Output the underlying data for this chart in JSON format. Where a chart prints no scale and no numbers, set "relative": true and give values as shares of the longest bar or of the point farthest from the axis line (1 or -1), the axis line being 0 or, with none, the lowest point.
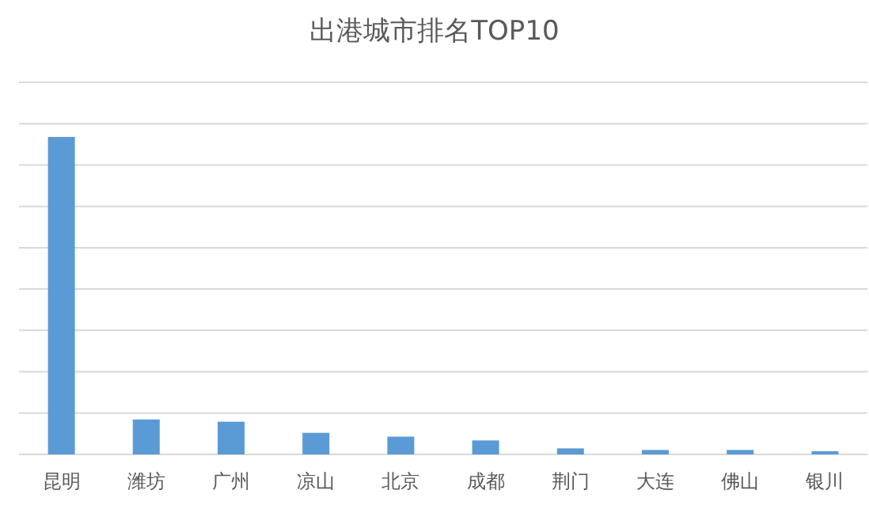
{
  "chart_data": {
    "type": "bar",
    "title": "出港城市排名TOP10",
    "categories": [
      "昆明",
      "潍坊",
      "广州",
      "凉山",
      "北京",
      "成都",
      "荆门",
      "大连",
      "佛山",
      "银川"
    ],
    "values": [
      1,
      0.11,
      0.103,
      0.068,
      0.056,
      0.044,
      0.019,
      0.014,
      0.014,
      0.01
    ],
    "color": "#5b9bd5",
    "relative": true,
    "grid": "y"
  }
}
